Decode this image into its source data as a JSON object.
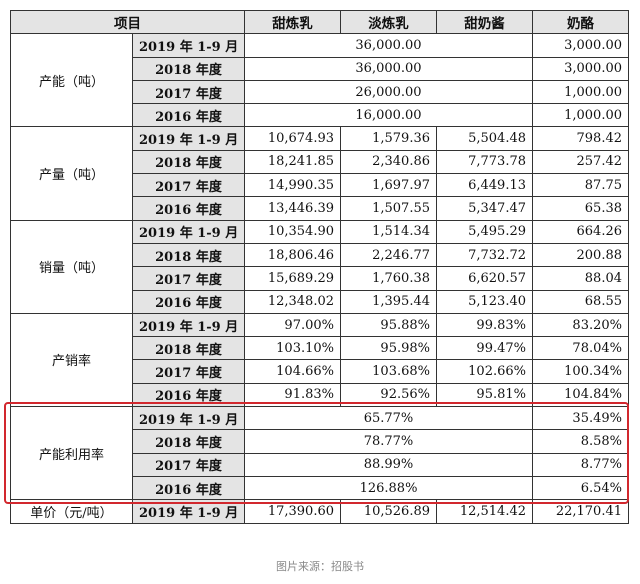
{
  "header": {
    "item": "项目",
    "products": [
      "甜炼乳",
      "淡炼乳",
      "甜奶酱",
      "奶酪"
    ]
  },
  "sections": [
    {
      "label": "产能（吨）",
      "rows": [
        {
          "period": "2019 年 1-9 月",
          "combined": "36,000.00",
          "cheese": "3,000.00"
        },
        {
          "period": "2018 年度",
          "combined": "36,000.00",
          "cheese": "3,000.00"
        },
        {
          "period": "2017 年度",
          "combined": "26,000.00",
          "cheese": "1,000.00"
        },
        {
          "period": "2016 年度",
          "combined": "16,000.00",
          "cheese": "1,000.00"
        }
      ]
    },
    {
      "label": "产量（吨）",
      "rows": [
        {
          "period": "2019 年 1-9 月",
          "values": [
            "10,674.93",
            "1,579.36",
            "5,504.48",
            "798.42"
          ]
        },
        {
          "period": "2018 年度",
          "values": [
            "18,241.85",
            "2,340.86",
            "7,773.78",
            "257.42"
          ]
        },
        {
          "period": "2017 年度",
          "values": [
            "14,990.35",
            "1,697.97",
            "6,449.13",
            "87.75"
          ]
        },
        {
          "period": "2016 年度",
          "values": [
            "13,446.39",
            "1,507.55",
            "5,347.47",
            "65.38"
          ]
        }
      ]
    },
    {
      "label": "销量（吨）",
      "rows": [
        {
          "period": "2019 年 1-9 月",
          "values": [
            "10,354.90",
            "1,514.34",
            "5,495.29",
            "664.26"
          ]
        },
        {
          "period": "2018 年度",
          "values": [
            "18,806.46",
            "2,246.77",
            "7,732.72",
            "200.88"
          ]
        },
        {
          "period": "2017 年度",
          "values": [
            "15,689.29",
            "1,760.38",
            "6,620.57",
            "88.04"
          ]
        },
        {
          "period": "2016 年度",
          "values": [
            "12,348.02",
            "1,395.44",
            "5,123.40",
            "68.55"
          ]
        }
      ]
    },
    {
      "label": "产销率",
      "rows": [
        {
          "period": "2019 年 1-9 月",
          "values": [
            "97.00%",
            "95.88%",
            "99.83%",
            "83.20%"
          ]
        },
        {
          "period": "2018 年度",
          "values": [
            "103.10%",
            "95.98%",
            "99.47%",
            "78.04%"
          ]
        },
        {
          "period": "2017 年度",
          "values": [
            "104.66%",
            "103.68%",
            "102.66%",
            "100.34%"
          ]
        },
        {
          "period": "2016 年度",
          "values": [
            "91.83%",
            "92.56%",
            "95.81%",
            "104.84%"
          ]
        }
      ]
    },
    {
      "label": "产能利用率",
      "rows": [
        {
          "period": "2019 年 1-9 月",
          "combined": "65.77%",
          "cheese": "35.49%"
        },
        {
          "period": "2018 年度",
          "combined": "78.77%",
          "cheese": "8.58%"
        },
        {
          "period": "2017 年度",
          "combined": "88.99%",
          "cheese": "8.77%"
        },
        {
          "period": "2016 年度",
          "combined": "126.88%",
          "cheese": "6.54%"
        }
      ]
    },
    {
      "label": "单价（元/吨）",
      "rows": [
        {
          "period": "2019 年 1-9 月",
          "values": [
            "17,390.60",
            "10,526.89",
            "12,514.42",
            "22,170.41"
          ]
        }
      ]
    }
  ],
  "highlight_color": "#d2282e",
  "caption": "图片来源：招股书"
}
